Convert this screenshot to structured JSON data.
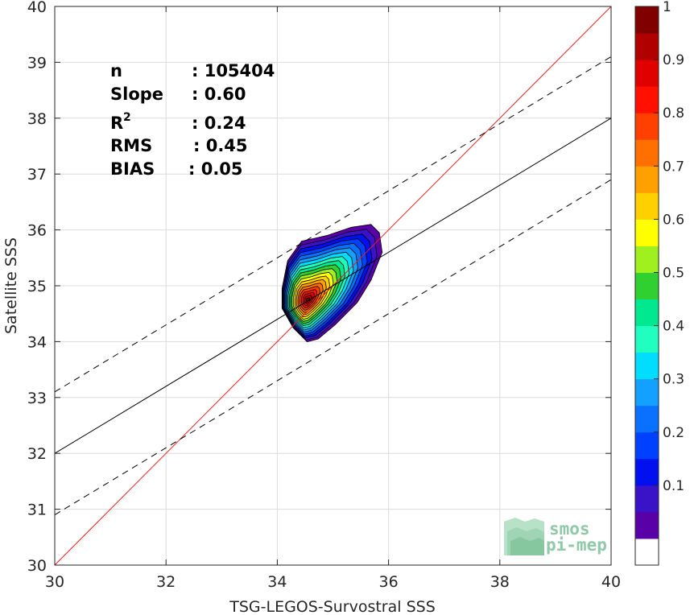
{
  "chart_data": {
    "type": "contour",
    "xlabel": "TSG-LEGOS-Survostral SSS",
    "ylabel": "Satellite SSS",
    "xlim": [
      30,
      40
    ],
    "ylim": [
      30,
      40
    ],
    "xticks": [
      "30",
      "32",
      "34",
      "36",
      "38",
      "40"
    ],
    "yticks": [
      "30",
      "31",
      "32",
      "33",
      "34",
      "35",
      "36",
      "37",
      "38",
      "39",
      "40"
    ],
    "grid": true,
    "stats": [
      {
        "label": "n",
        "value": ": 105404"
      },
      {
        "label": "Slope",
        "value": ": 0.60"
      },
      {
        "label": "R",
        "sup": "2",
        "value": ": 0.24"
      },
      {
        "label": "RMS",
        "value": ": 0.45"
      },
      {
        "label": "BIAS",
        "value": ": 0.05"
      }
    ],
    "lines": {
      "identity": {
        "slope": 1,
        "intercept": 0,
        "color": "#e8211d"
      },
      "fit": {
        "slope": 0.6,
        "intercept": 14,
        "color": "#000000"
      },
      "fit_plus": {
        "slope": 0.6,
        "intercept": 15.1,
        "color": "#000000",
        "dashed": true
      },
      "fit_minus": {
        "slope": 0.6,
        "intercept": 12.9,
        "color": "#000000",
        "dashed": true
      }
    },
    "density": {
      "center": [
        34.55,
        34.75
      ],
      "levels": [
        0.05,
        0.1,
        0.15,
        0.2,
        0.25,
        0.3,
        0.35,
        0.4,
        0.45,
        0.5,
        0.55,
        0.6,
        0.65,
        0.7,
        0.75,
        0.8,
        0.85,
        0.9,
        0.95,
        1.0
      ]
    },
    "colorbar": {
      "ticks": [
        "0.1",
        "0.2",
        "0.3",
        "0.4",
        "0.5",
        "0.6",
        "0.7",
        "0.8",
        "0.9",
        "1"
      ],
      "colors": [
        "#ffffff",
        "#5a00a8",
        "#3a12c8",
        "#0010ee",
        "#0040ff",
        "#0a70ff",
        "#14a0ff",
        "#00ddff",
        "#20ffc0",
        "#00e890",
        "#30d030",
        "#a0f020",
        "#ffff00",
        "#ffd000",
        "#ffa000",
        "#ff7000",
        "#ff4000",
        "#ff1000",
        "#e00000",
        "#b00000",
        "#800000"
      ]
    },
    "logo": {
      "line1": "smos",
      "line2": "pi-mep"
    }
  }
}
